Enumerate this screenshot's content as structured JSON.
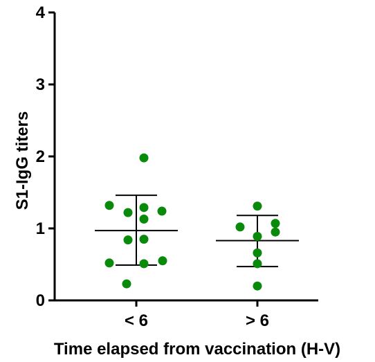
{
  "chart_data": {
    "type": "scatter",
    "xlabel": "Time elapsed from vaccination (H-V)",
    "ylabel": "S1-IgG titers",
    "ylim": [
      0,
      4
    ],
    "yticks": [
      0,
      1,
      2,
      3,
      4
    ],
    "categories": [
      "< 6",
      "> 6"
    ],
    "point_color": "#0a8a0a",
    "groups": [
      {
        "category": "< 6",
        "values": [
          1.98,
          1.32,
          1.22,
          1.29,
          1.24,
          1.13,
          0.84,
          0.85,
          0.52,
          0.51,
          0.55,
          0.23
        ],
        "mean": 0.97,
        "sd_upper": 1.46,
        "sd_lower": 0.49
      },
      {
        "category": "> 6",
        "values": [
          1.31,
          1.02,
          1.07,
          0.95,
          0.89,
          0.66,
          0.51,
          0.2
        ],
        "mean": 0.83,
        "sd_upper": 1.18,
        "sd_lower": 0.47
      }
    ]
  }
}
